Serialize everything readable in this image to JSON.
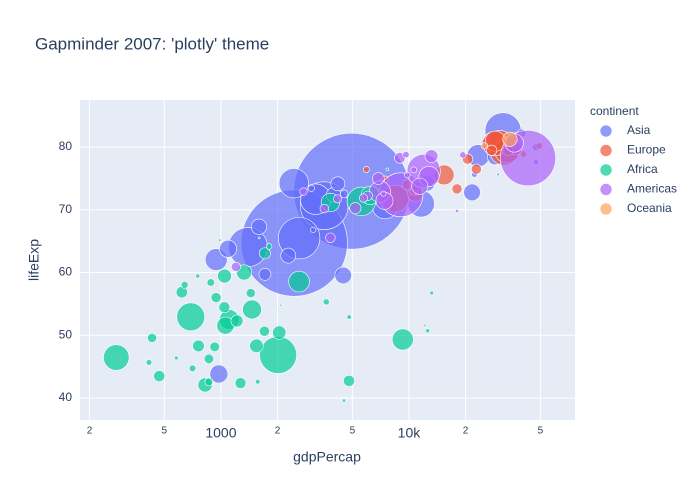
{
  "chart_data": {
    "type": "scatter",
    "title": "Gapminder 2007: 'plotly' theme",
    "x_label": "gdpPercap",
    "y_label": "lifeExp",
    "legend_title": "continent",
    "log_x": true,
    "grid": true,
    "legend": "right",
    "xlim": [
      178,
      76400
    ],
    "ylim": [
      36.5,
      87.5
    ],
    "xticks": [
      {
        "value": 200,
        "label": "2"
      },
      {
        "value": 500,
        "label": "5"
      },
      1000,
      {
        "value": 2000,
        "label": "2"
      },
      {
        "value": 5000,
        "label": "5"
      },
      {
        "value": 10000,
        "label": "10k"
      },
      {
        "value": 20000,
        "label": "2"
      },
      {
        "value": 50000,
        "label": "5"
      }
    ],
    "yticks": [
      40,
      50,
      60,
      70,
      80
    ],
    "series": [
      {
        "name": "Asia",
        "color": "#636efa",
        "x": [
          4959.1,
          2452.2,
          3540.7,
          2605.9,
          1391.3,
          31656,
          3190.5,
          2441.6,
          11605.7,
          7458.4,
          944,
          23348,
          974.6,
          1091.4,
          4471.1,
          21654.8,
          12451.7,
          1593.1,
          28718.3,
          3970.1,
          2280.8,
          1713.8,
          4184.5,
          39725,
          25523,
          47143,
          3095.8,
          47307,
          4519.5,
          10461,
          22316,
          29796,
          3025
        ],
        "values": [
          72.961,
          64.698,
          70.65,
          65.483,
          64.062,
          82.603,
          71.688,
          74.249,
          70.964,
          70.616,
          62.069,
          78.623,
          43.828,
          63.785,
          59.545,
          72.777,
          74.241,
          67.297,
          78.4,
          72.396,
          62.698,
          59.723,
          74.143,
          82.208,
          80.745,
          79.972,
          66.803,
          77.588,
          72.535,
          71.993,
          75.64,
          75.635,
          73.422
        ],
        "sizes": [
          1318683096,
          1110396331,
          223547000,
          169270617,
          150448339,
          127467972,
          91077287,
          85262356,
          69453570,
          65068149,
          47761980,
          49044790,
          31889923,
          28901790,
          27499638,
          27601038,
          24821286,
          23301725,
          23174294,
          20378239,
          22211743,
          14131858,
          19314747,
          6980412,
          6426679,
          4553009,
          2874127,
          2505559,
          6053193,
          3921278,
          3204897,
          708573,
          4018332
        ]
      },
      {
        "name": "Europe",
        "color": "#EF553B",
        "x": [
          32170,
          8458.3,
          30470,
          33203,
          28570,
          28821,
          15390,
          10808,
          36798,
          27538,
          20510,
          33693,
          22833,
          18009,
          33860,
          9787,
          10681,
          37506,
          5937,
          7446,
          49357,
          40676
        ],
        "values": [
          79.406,
          71.777,
          80.657,
          79.425,
          80.546,
          80.941,
          75.563,
          72.476,
          79.762,
          79.483,
          78.098,
          79.441,
          76.486,
          73.338,
          80.884,
          74.002,
          73.005,
          81.701,
          76.423,
          74.852,
          80.196,
          78.885
        ],
        "sizes": [
          82400996,
          71158647,
          61083916,
          60776238,
          58147733,
          40448191,
          38518241,
          22276056,
          16570613,
          10706290,
          10642836,
          10392226,
          10228744,
          9956108,
          9031088,
          10150265,
          7322858,
          7554661,
          3600523,
          4552198,
          4627926,
          4109086
        ]
      },
      {
        "name": "Africa",
        "color": "#00cc96",
        "x": [
          2013.98,
          690.8,
          5581,
          277.55,
          9269.7,
          2602.4,
          1107.5,
          1463.2,
          3820.2,
          6223.4,
          1056.4,
          1327.5,
          823.7,
          1044.8,
          1544.8,
          2042.1,
          4797.2,
          759.3,
          619.7,
          1217,
          1042.6,
          469.7,
          1712.5,
          1271.2,
          7093,
          1704.1,
          942.7,
          863.1,
          1441.3,
          430.1,
          926.1,
          862.5,
          12057,
          882.97,
          641.4,
          414.5,
          706,
          1803,
          12570,
          4811,
          13206,
          1569,
          4513,
          752.7,
          10957,
          579.2,
          3633,
          2082,
          12154,
          986,
          7670,
          1598
        ],
        "values": [
          46.859,
          52.947,
          71.338,
          46.462,
          49.339,
          58.556,
          52.517,
          54.11,
          71.164,
          72.301,
          51.542,
          60.022,
          42.082,
          59.443,
          48.328,
          50.43,
          42.731,
          48.303,
          56.867,
          52.295,
          54.467,
          43.487,
          63.062,
          42.384,
          73.923,
          50.651,
          56.007,
          46.242,
          56.728,
          49.58,
          48.159,
          42.568,
          73.952,
          58.42,
          58.04,
          45.678,
          44.741,
          64.164,
          50.728,
          52.906,
          56.735,
          42.592,
          39.613,
          59.448,
          72.801,
          46.388,
          55.322,
          54.791,
          51.579,
          65.152,
          76.442,
          65.528
        ],
        "sizes": [
          135031164,
          76511887,
          80264543,
          64606759,
          43997828,
          42292929,
          38139640,
          35610177,
          33757175,
          33333216,
          29170398,
          22873338,
          19951656,
          19167654,
          18013409,
          17696293,
          12420476,
          13327079,
          12894865,
          14326203,
          12031795,
          12311143,
          12267493,
          11746035,
          10276158,
          10238807,
          9947814,
          8860588,
          8078314,
          8390505,
          9118773,
          6144562,
          6036914,
          5701579,
          4906585,
          3193942,
          4369038,
          3270065,
          1639131,
          2055080,
          1454867,
          2012649,
          1133066,
          1688359,
          1250882,
          1472041,
          3800610,
          496374,
          551201,
          710960,
          798094,
          199579
        ]
      },
      {
        "name": "Americas",
        "color": "#ab63fa",
        "x": [
          42952,
          9065.8,
          11978,
          7006.6,
          12779,
          36319,
          7409,
          11416,
          13172,
          6873,
          5186,
          8948,
          1201.6,
          3822,
          6025,
          3548,
          4173,
          5728,
          2749,
          9645,
          19329,
          10611,
          9809,
          7321,
          18009
        ],
        "values": [
          78.242,
          72.39,
          76.195,
          72.889,
          75.32,
          80.653,
          71.421,
          73.747,
          78.553,
          74.994,
          70.259,
          78.273,
          60.916,
          65.554,
          72.235,
          70.198,
          71.752,
          71.878,
          72.899,
          78.782,
          78.746,
          76.384,
          75.537,
          72.567,
          69.819
        ],
        "sizes": [
          301139947,
          190010647,
          108700891,
          44227550,
          40301927,
          33390141,
          28674757,
          26084662,
          16284741,
          13755680,
          12572928,
          11416987,
          8502814,
          9119152,
          9319622,
          7483763,
          6667147,
          6939688,
          5675356,
          4133884,
          3942491,
          3447496,
          3242173,
          2780132,
          1056608
        ]
      },
      {
        "name": "Oceania",
        "color": "#FFA15A",
        "x": [
          34435,
          25185
        ],
        "values": [
          81.235,
          80.204
        ],
        "sizes": [
          20434176,
          4115771
        ]
      }
    ]
  }
}
